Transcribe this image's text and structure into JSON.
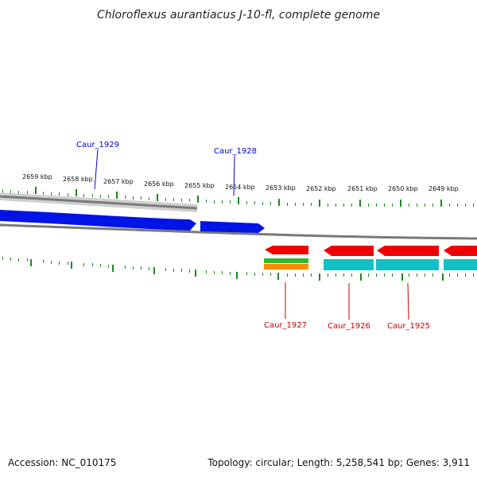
{
  "title": "Chloroflexus aurantiacus J-10-fl, complete genome",
  "footer": {
    "accession": "Accession: NC_010175",
    "summary": "Topology: circular; Length: 5,258,541 bp; Genes: 3,911"
  },
  "colors": {
    "background": "#ffffff",
    "backbone": "#7a7a7a",
    "backbone_light": "#cfcfcf",
    "tick": "#1a8a1a",
    "forward_gene": "#0014e6",
    "forward_label": "#0000cc",
    "reverse_gene": "#f00000",
    "reverse_label": "#cc0000",
    "cyan_feature": "#14c0c8",
    "green_feature": "#33b833",
    "orange_feature": "#ff8c00"
  },
  "tick_labels": [
    "2659 kbp",
    "2658 kbp",
    "2657 kbp",
    "2656 kbp",
    "2655 kbp",
    "2654 kbp",
    "2653 kbp",
    "2652 kbp",
    "2651 kbp",
    "2650 kbp",
    "2649 kbp"
  ],
  "genes": {
    "forward": [
      {
        "id": "Caur_1929"
      },
      {
        "id": "Caur_1928"
      }
    ],
    "reverse": [
      {
        "id": "Caur_1927"
      },
      {
        "id": "Caur_1926"
      },
      {
        "id": "Caur_1925"
      }
    ]
  }
}
